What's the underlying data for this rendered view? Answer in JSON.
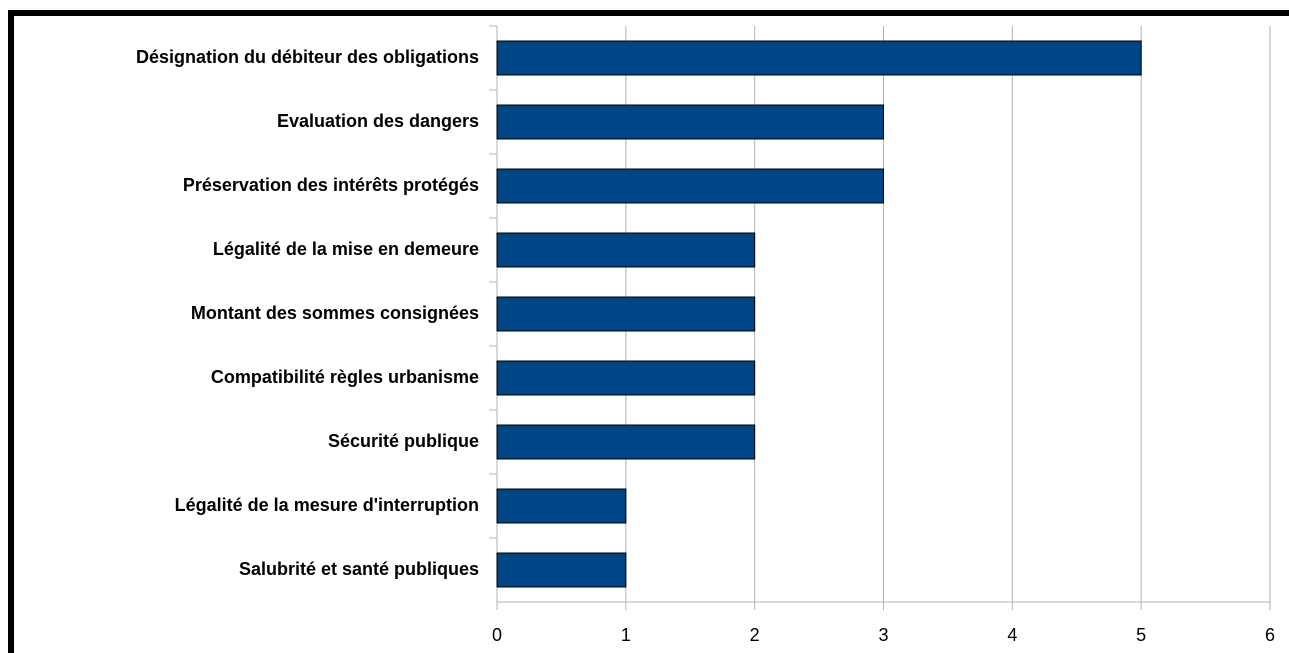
{
  "chart_data": {
    "type": "bar",
    "orientation": "horizontal",
    "categories": [
      "Désignation du débiteur des obligations",
      "Evaluation des dangers",
      "Préservation des intérêts protégés",
      "Légalité de la mise en demeure",
      "Montant des sommes consignées",
      "Compatibilité règles urbanisme",
      "Sécurité publique",
      "Légalité de la mesure d'interruption",
      "Salubrité et santé publiques"
    ],
    "values": [
      5,
      3,
      3,
      2,
      2,
      2,
      2,
      1,
      1
    ],
    "color": "#004586",
    "xlim": [
      0,
      6
    ],
    "xticks": [
      0,
      1,
      2,
      3,
      4,
      5,
      6
    ],
    "grid": true
  }
}
